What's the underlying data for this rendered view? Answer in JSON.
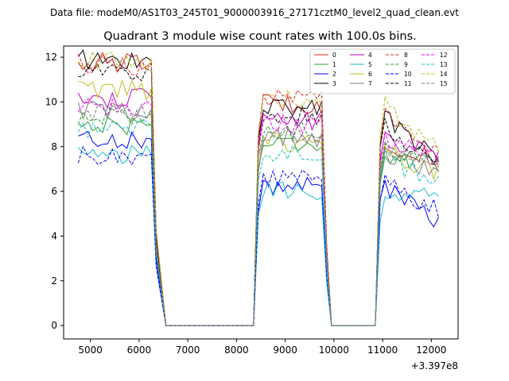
{
  "chart_data": {
    "type": "line",
    "suptitle": "Data file: modeM0/AS1T03_245T01_9000003916_27171cztM0_level2_quad_clean.evt",
    "title": "Quadrant 3 module wise count rates with 100.0s bins.",
    "xlabel": "",
    "ylabel": "",
    "x_offset_label": "+3.397e8",
    "xlim": [
      4450,
      12550
    ],
    "ylim": [
      -0.6,
      12.5
    ],
    "xticks": [
      5000,
      6000,
      7000,
      8000,
      9000,
      10000,
      11000,
      12000
    ],
    "yticks": [
      0,
      2,
      4,
      6,
      8,
      10,
      12
    ],
    "legend_position": "top-right",
    "segments": [
      {
        "x_start": 4750,
        "x_end": 6250
      },
      {
        "x_start": 8550,
        "x_end": 9750
      },
      {
        "x_start": 11050,
        "x_end": 12150
      }
    ],
    "zero_gaps": [
      {
        "x_from": 6550,
        "x_to": 8350
      },
      {
        "x_from": 9950,
        "x_to": 10850
      }
    ],
    "series": [
      {
        "name": "0",
        "color": "#d62728",
        "dash": false,
        "levels": [
          11.8,
          10.0,
          8.0
        ],
        "end": 7.4
      },
      {
        "name": "1",
        "color": "#2ca02c",
        "dash": false,
        "levels": [
          9.0,
          8.2,
          7.6
        ],
        "end": 7.1
      },
      {
        "name": "2",
        "color": "#0000ff",
        "dash": false,
        "levels": [
          8.4,
          6.2,
          6.5
        ],
        "end": 4.6
      },
      {
        "name": "3",
        "color": "#000000",
        "dash": false,
        "levels": [
          11.9,
          9.8,
          9.6
        ],
        "end": 7.5
      },
      {
        "name": "4",
        "color": "#bf00bf",
        "dash": false,
        "levels": [
          10.2,
          9.2,
          8.6
        ],
        "end": 7.5
      },
      {
        "name": "5",
        "color": "#17becf",
        "dash": false,
        "levels": [
          7.7,
          6.0,
          5.7
        ],
        "end": 5.9
      },
      {
        "name": "6",
        "color": "#bcbd22",
        "dash": false,
        "levels": [
          10.6,
          8.2,
          8.0
        ],
        "end": 6.9
      },
      {
        "name": "7",
        "color": "#7f7f7f",
        "dash": false,
        "levels": [
          9.6,
          8.4,
          7.8
        ],
        "end": 7.0
      },
      {
        "name": "8",
        "color": "#d62728",
        "dash": true,
        "levels": [
          11.7,
          10.1,
          9.6
        ],
        "end": 7.5
      },
      {
        "name": "9",
        "color": "#2ca02c",
        "dash": true,
        "levels": [
          9.4,
          8.8,
          8.0
        ],
        "end": 7.2
      },
      {
        "name": "10",
        "color": "#0000ff",
        "dash": true,
        "levels": [
          7.6,
          6.6,
          6.6
        ],
        "end": 5.2
      },
      {
        "name": "11",
        "color": "#000000",
        "dash": true,
        "levels": [
          11.4,
          9.4,
          9.1
        ],
        "end": 7.3
      },
      {
        "name": "12",
        "color": "#ff00ff",
        "dash": true,
        "levels": [
          9.8,
          9.0,
          8.5
        ],
        "end": 7.4
      },
      {
        "name": "13",
        "color": "#17becf",
        "dash": true,
        "levels": [
          8.8,
          7.8,
          7.6
        ],
        "end": 6.5
      },
      {
        "name": "14",
        "color": "#bcbd22",
        "dash": true,
        "levels": [
          11.9,
          10.1,
          10.0
        ],
        "end": 8.0
      },
      {
        "name": "15",
        "color": "#7f7f7f",
        "dash": true,
        "levels": [
          9.6,
          8.6,
          8.0
        ],
        "end": 7.2
      }
    ]
  }
}
